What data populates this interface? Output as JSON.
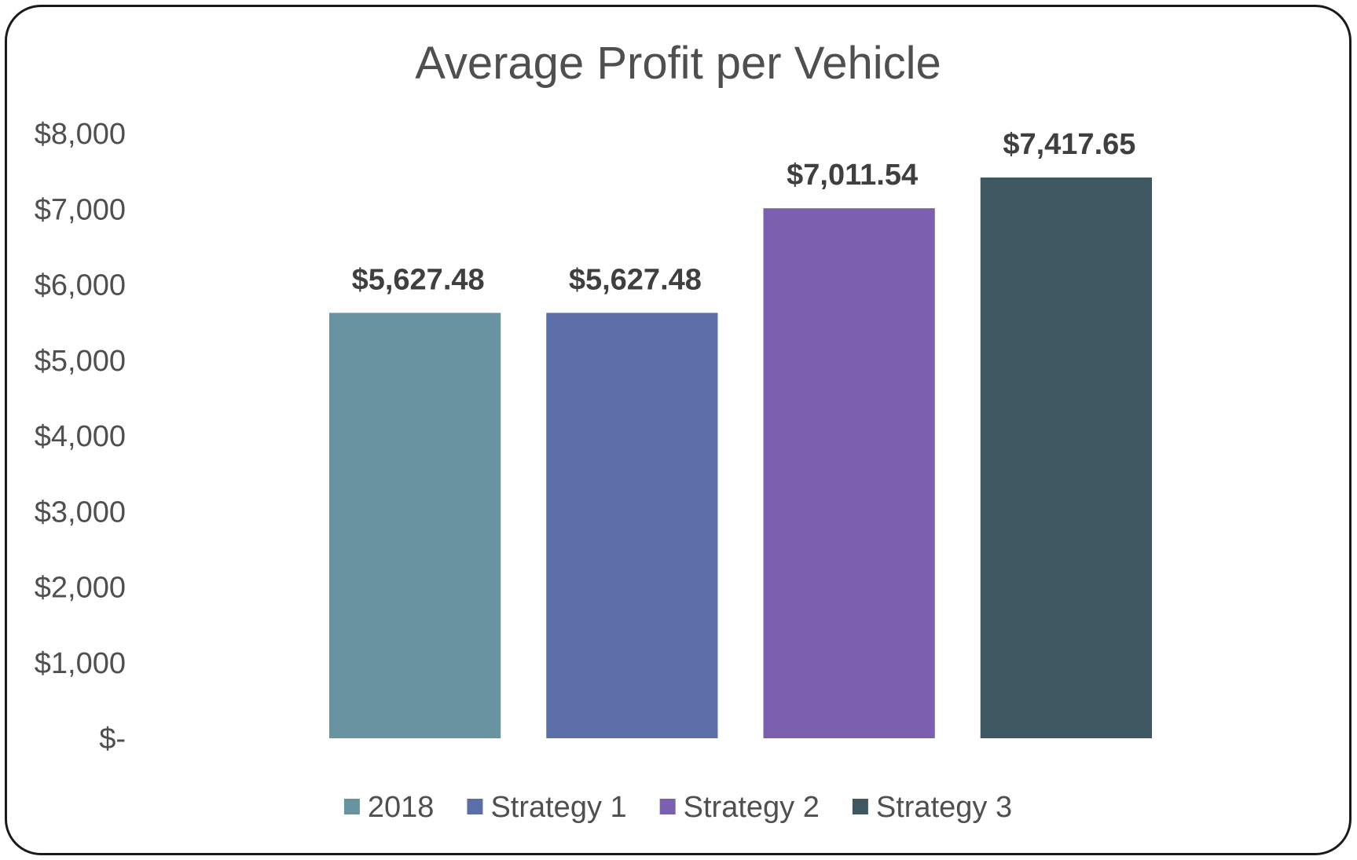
{
  "chart_data": {
    "type": "bar",
    "title": "Average Profit per Vehicle",
    "categories": [
      "2018",
      "Strategy 1",
      "Strategy 2",
      "Strategy 3"
    ],
    "values": [
      5627.48,
      5627.48,
      7011.54,
      7417.65
    ],
    "data_labels": [
      "$5,627.48",
      "$5,627.48",
      "$7,011.54",
      "$7,417.65"
    ],
    "colors": [
      "#6893a0",
      "#5b6ea8",
      "#7b60b0",
      "#3f5761"
    ],
    "ylim": [
      0,
      8000
    ],
    "y_ticks": [
      0,
      1000,
      2000,
      3000,
      4000,
      5000,
      6000,
      7000,
      8000
    ],
    "y_tick_labels": [
      "$-",
      "$1,000",
      "$2,000",
      "$3,000",
      "$4,000",
      "$5,000",
      "$6,000",
      "$7,000",
      "$8,000"
    ],
    "legend": [
      "2018",
      "Strategy 1",
      "Strategy 2",
      "Strategy 3"
    ],
    "legend_position": "bottom",
    "grid": false
  }
}
